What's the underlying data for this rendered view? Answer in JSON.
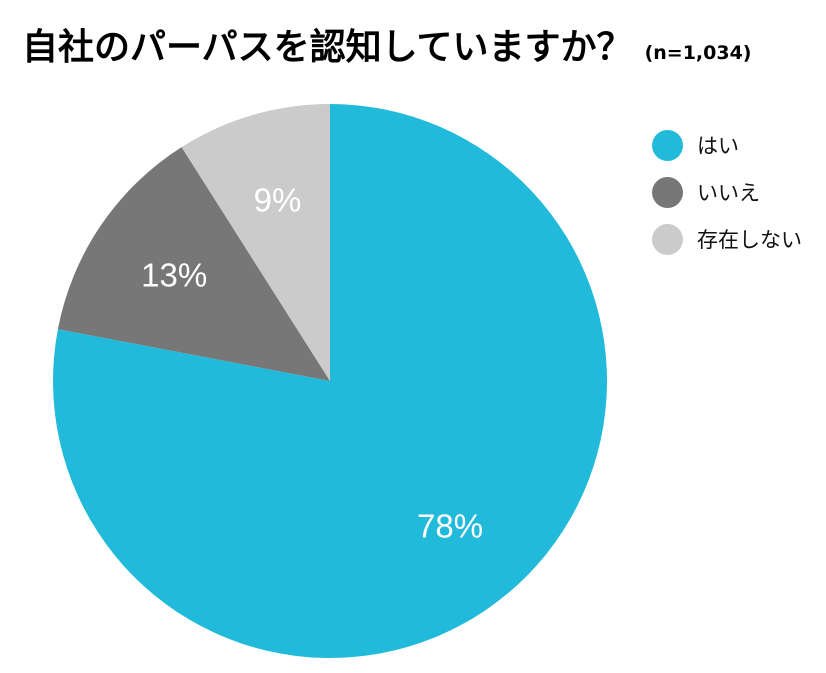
{
  "chart_data": {
    "type": "pie",
    "title": "自社のパーパスを認知していますか？",
    "subtitle": "(n=1,034)",
    "categories": [
      "はい",
      "いいえ",
      "存在しない"
    ],
    "values": [
      78,
      13,
      9
    ],
    "value_labels": [
      "78%",
      "13%",
      "9%"
    ],
    "colors": [
      "#22bada",
      "#777777",
      "#cbcbcb"
    ],
    "start_angle_deg": 0,
    "direction": "clockwise",
    "legend_position": "top-right"
  }
}
